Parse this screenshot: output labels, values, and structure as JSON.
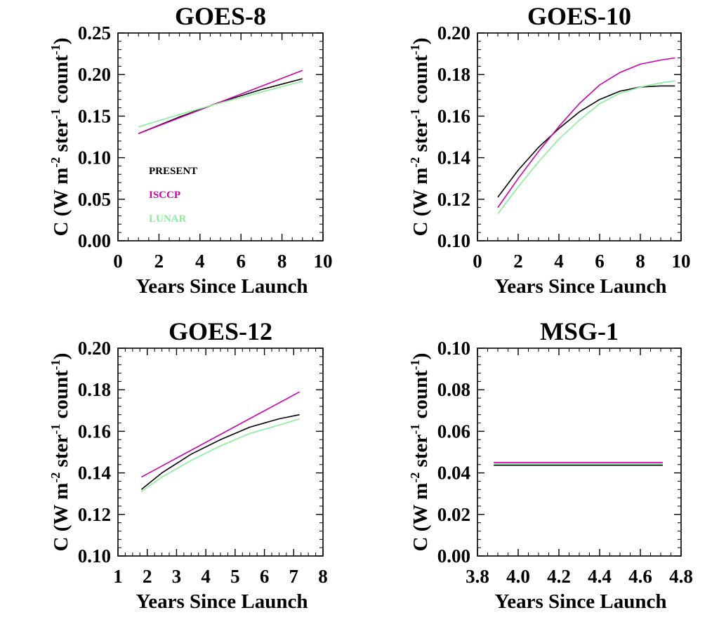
{
  "chart_data": [
    {
      "type": "line",
      "title": "GOES-8",
      "xlabel": "Years Since Launch",
      "ylabel": {
        "pre": "C (W m",
        "sup1": "-2",
        "mid": " ster",
        "sup2": "-1",
        "mid2": " count",
        "sup3": "-1",
        "post": ")"
      },
      "xlim": [
        0,
        10
      ],
      "ylim": [
        0,
        0.25
      ],
      "xticks": [
        "0",
        "2",
        "4",
        "6",
        "8",
        "10"
      ],
      "yticks": [
        "0.00",
        "0.05",
        "0.10",
        "0.15",
        "0.20",
        "0.25"
      ],
      "legend": {
        "placement": "lower-left",
        "entries": [
          "PRESENT",
          "ISCCP",
          "LUNAR"
        ]
      },
      "series": [
        {
          "name": "PRESENT",
          "color": "#000000",
          "x": [
            1,
            3,
            5,
            7,
            9
          ],
          "y": [
            0.129,
            0.149,
            0.167,
            0.182,
            0.195
          ]
        },
        {
          "name": "ISCCP",
          "color": "#cc00aa",
          "x": [
            1,
            3,
            5,
            7,
            9
          ],
          "y": [
            0.129,
            0.148,
            0.167,
            0.186,
            0.205
          ]
        },
        {
          "name": "LUNAR",
          "color": "#88ee99",
          "x": [
            1,
            3,
            5,
            7,
            9
          ],
          "y": [
            0.137,
            0.152,
            0.166,
            0.179,
            0.192
          ]
        }
      ]
    },
    {
      "type": "line",
      "title": "GOES-10",
      "xlabel": "Years Since Launch",
      "ylabel": {
        "pre": "C (W m",
        "sup1": "-2",
        "mid": " ster",
        "sup2": "-1",
        "mid2": " count",
        "sup3": "-1",
        "post": ")"
      },
      "xlim": [
        0,
        10
      ],
      "ylim": [
        0.1,
        0.2
      ],
      "xticks": [
        "0",
        "2",
        "4",
        "6",
        "8",
        "10"
      ],
      "yticks": [
        "0.10",
        "0.12",
        "0.14",
        "0.16",
        "0.18",
        "0.20"
      ],
      "series": [
        {
          "name": "PRESENT",
          "color": "#000000",
          "x": [
            1,
            2,
            3,
            4,
            5,
            6,
            7,
            8,
            9,
            9.7
          ],
          "y": [
            0.121,
            0.134,
            0.145,
            0.154,
            0.162,
            0.168,
            0.172,
            0.174,
            0.1745,
            0.1745
          ]
        },
        {
          "name": "ISCCP",
          "color": "#cc00aa",
          "x": [
            1,
            2,
            3,
            4,
            5,
            6,
            7,
            8,
            9,
            9.7
          ],
          "y": [
            0.116,
            0.13,
            0.143,
            0.155,
            0.166,
            0.175,
            0.181,
            0.185,
            0.187,
            0.188
          ]
        },
        {
          "name": "LUNAR",
          "color": "#88ee99",
          "x": [
            1,
            2,
            3,
            4,
            5,
            6,
            7,
            8,
            9,
            9.7
          ],
          "y": [
            0.113,
            0.126,
            0.138,
            0.149,
            0.158,
            0.166,
            0.171,
            0.174,
            0.176,
            0.177
          ]
        }
      ]
    },
    {
      "type": "line",
      "title": "GOES-12",
      "xlabel": "Years Since Launch",
      "ylabel": {
        "pre": "C (W m",
        "sup1": "-2",
        "mid": " ster",
        "sup2": "-1",
        "mid2": " count",
        "sup3": "-1",
        "post": ")"
      },
      "xlim": [
        1,
        8
      ],
      "ylim": [
        0.1,
        0.2
      ],
      "xticks": [
        "1",
        "2",
        "3",
        "4",
        "5",
        "6",
        "7",
        "8"
      ],
      "yticks": [
        "0.10",
        "0.12",
        "0.14",
        "0.16",
        "0.18",
        "0.20"
      ],
      "series": [
        {
          "name": "PRESENT",
          "color": "#000000",
          "x": [
            1.8,
            2.5,
            3.5,
            4.5,
            5.5,
            6.5,
            7.2
          ],
          "y": [
            0.132,
            0.14,
            0.149,
            0.156,
            0.162,
            0.166,
            0.168
          ]
        },
        {
          "name": "ISCCP",
          "color": "#cc00aa",
          "x": [
            1.8,
            7.2
          ],
          "y": [
            0.138,
            0.179
          ]
        },
        {
          "name": "LUNAR",
          "color": "#88ee99",
          "x": [
            1.8,
            2.5,
            3.5,
            4.5,
            5.5,
            6.5,
            7.2
          ],
          "y": [
            0.131,
            0.138,
            0.146,
            0.153,
            0.159,
            0.163,
            0.166
          ]
        }
      ]
    },
    {
      "type": "line",
      "title": "MSG-1",
      "xlabel": "Years Since Launch",
      "ylabel": {
        "pre": "C (W m",
        "sup1": "-2",
        "mid": " ster",
        "sup2": "-1",
        "mid2": " count",
        "sup3": "-1",
        "post": ")"
      },
      "xlim": [
        3.8,
        4.8
      ],
      "ylim": [
        0,
        0.1
      ],
      "xticks": [
        "3.8",
        "4.0",
        "4.2",
        "4.4",
        "4.6",
        "4.8"
      ],
      "yticks": [
        "0.00",
        "0.02",
        "0.04",
        "0.06",
        "0.08",
        "0.10"
      ],
      "series": [
        {
          "name": "PRESENT",
          "color": "#000000",
          "x": [
            3.88,
            4.71
          ],
          "y": [
            0.0437,
            0.0437
          ]
        },
        {
          "name": "ISCCP",
          "color": "#cc00aa",
          "x": [
            3.88,
            4.71
          ],
          "y": [
            0.045,
            0.045
          ]
        },
        {
          "name": "LUNAR",
          "color": "#88ee99",
          "x": [
            3.88,
            4.71
          ],
          "y": [
            0.0444,
            0.0444
          ]
        }
      ]
    }
  ]
}
